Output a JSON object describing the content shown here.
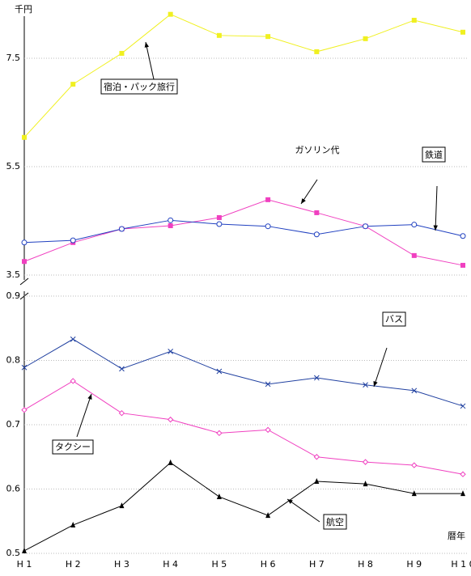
{
  "chart_data": [
    {
      "type": "line",
      "ylim": [
        3.5,
        8.35
      ],
      "yticks": [
        3.5,
        5.5,
        7.5
      ],
      "grid": true,
      "y_unit": "千円",
      "series": [
        {
          "name": "宿泊・パック旅行",
          "color": "#f0f020",
          "marker": "square",
          "values": [
            6.04,
            7.02,
            7.59,
            8.31,
            7.92,
            7.9,
            7.62,
            7.86,
            8.2,
            7.98
          ]
        },
        {
          "name": "ガソリン代",
          "color": "#f040c0",
          "marker": "square",
          "values": [
            3.75,
            4.1,
            4.35,
            4.41,
            4.56,
            4.89,
            4.65,
            4.4,
            3.86,
            3.68
          ]
        },
        {
          "name": "鉄道",
          "color": "#2040c0",
          "marker": "circle",
          "values": [
            4.1,
            4.14,
            4.35,
            4.51,
            4.44,
            4.4,
            4.25,
            4.4,
            4.43,
            4.22
          ]
        }
      ]
    },
    {
      "type": "line",
      "ylim": [
        0.5,
        0.9
      ],
      "yticks": [
        0.5,
        0.6,
        0.7,
        0.8,
        0.9
      ],
      "grid": true,
      "x_label": "暦年",
      "categories": [
        "H 1",
        "H 2",
        "H 3",
        "H 4",
        "H 5",
        "H 6",
        "H 7",
        "H 8",
        "H 9",
        "H 1 0"
      ],
      "series": [
        {
          "name": "バス",
          "color": "#2040a0",
          "marker": "x",
          "values": [
            0.789,
            0.833,
            0.787,
            0.814,
            0.783,
            0.763,
            0.773,
            0.762,
            0.753,
            0.729
          ]
        },
        {
          "name": "タクシー",
          "color": "#f040c0",
          "marker": "diamond",
          "values": [
            0.723,
            0.768,
            0.718,
            0.708,
            0.687,
            0.692,
            0.65,
            0.642,
            0.637,
            0.623
          ]
        },
        {
          "name": "航空",
          "color": "#000000",
          "marker": "triangle",
          "values": [
            0.504,
            0.544,
            0.574,
            0.641,
            0.588,
            0.559,
            0.612,
            0.608,
            0.593,
            0.593
          ]
        }
      ]
    }
  ]
}
